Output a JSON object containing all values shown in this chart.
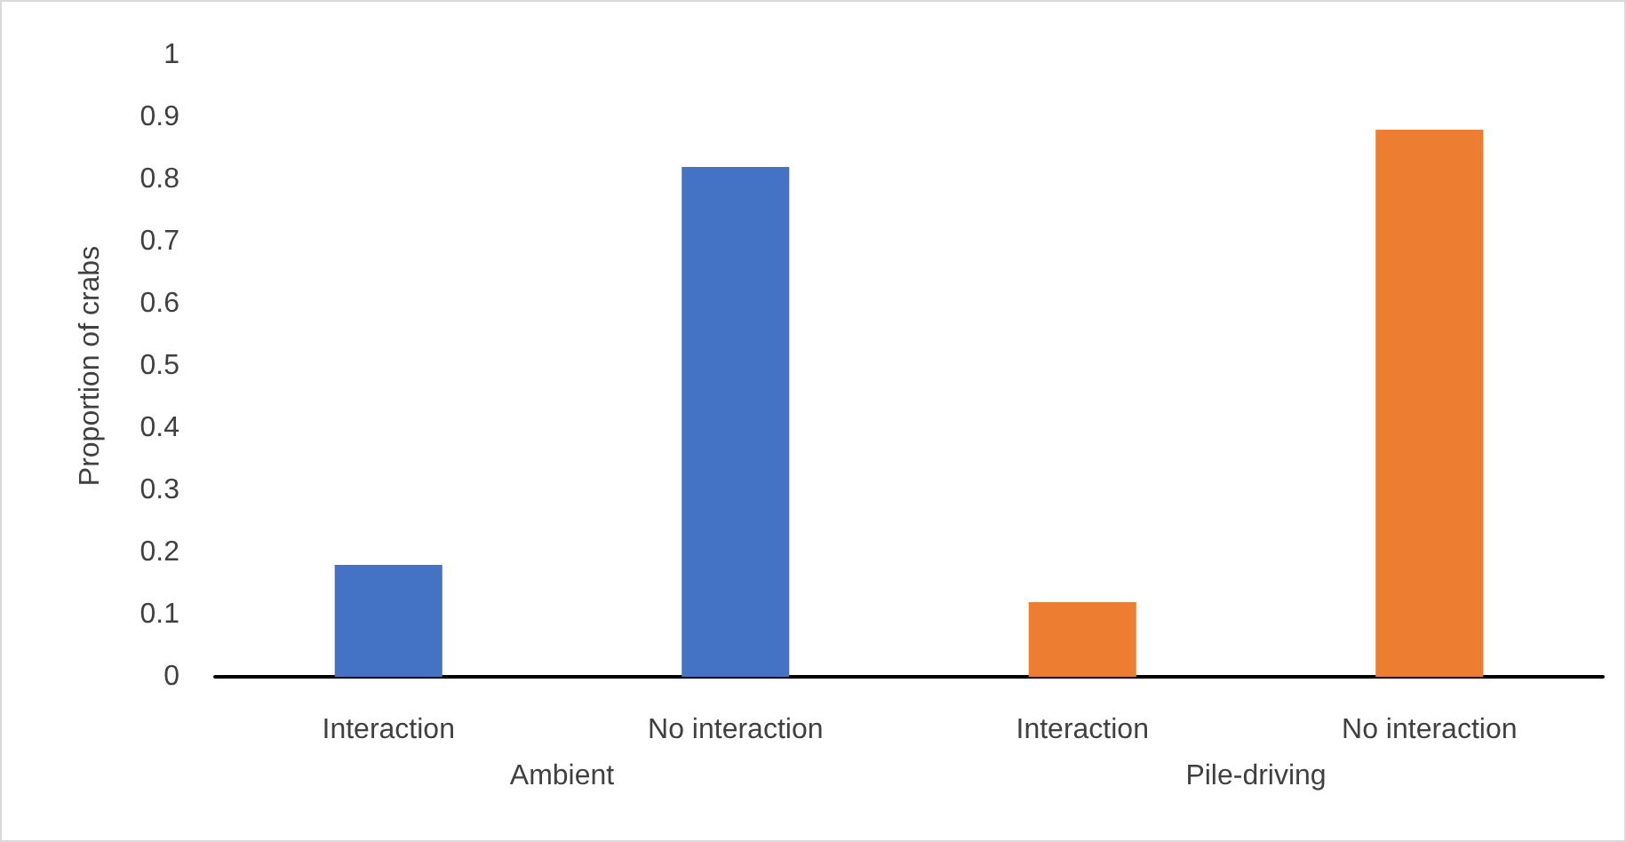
{
  "chart_data": {
    "type": "bar",
    "ylabel": "Proportion of crabs",
    "categories": [
      "Interaction",
      "No interaction",
      "Interaction",
      "No interaction"
    ],
    "values": [
      0.18,
      0.82,
      0.12,
      0.88
    ],
    "colors": [
      "#4472c4",
      "#4472c4",
      "#ed7d31",
      "#ed7d31"
    ],
    "ylim": [
      0,
      1
    ],
    "yticks": [
      0,
      0.1,
      0.2,
      0.3,
      0.4,
      0.5,
      0.6,
      0.7,
      0.8,
      0.9,
      1
    ],
    "grid": false,
    "annotations": [
      "Ambient",
      "Pile-driving"
    ]
  }
}
